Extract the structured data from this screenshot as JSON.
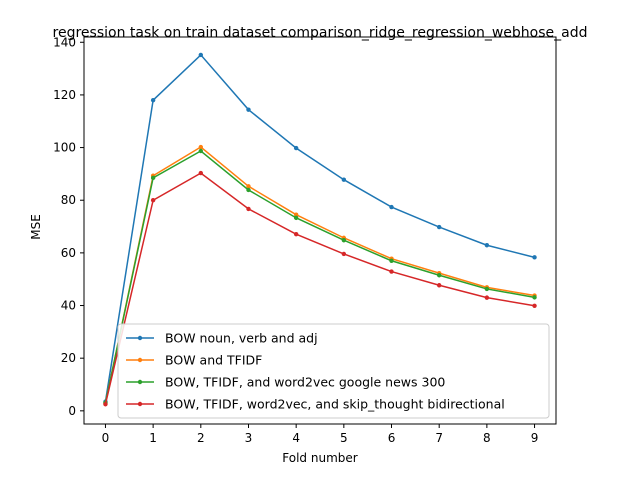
{
  "chart_data": {
    "type": "line",
    "title": "regression task on train dataset comparison_ridge_regression_webhose_add",
    "xlabel": "Fold number",
    "ylabel": "MSE",
    "x": [
      0,
      1,
      2,
      3,
      4,
      5,
      6,
      7,
      8,
      9
    ],
    "xlim": [
      -0.45,
      9.45
    ],
    "ylim": [
      -5,
      142
    ],
    "xticks": [
      "0",
      "1",
      "2",
      "3",
      "4",
      "5",
      "6",
      "7",
      "8",
      "9"
    ],
    "yticks": [
      "0",
      "20",
      "40",
      "60",
      "80",
      "100",
      "120",
      "140"
    ],
    "grid": false,
    "legend_position": "lower-center",
    "series": [
      {
        "name": "BOW noun, verb and adj",
        "color": "#1f77b4",
        "values": [
          3.5,
          118,
          135.2,
          114.4,
          99.8,
          87.8,
          77.4,
          69.8,
          62.9,
          58.3
        ]
      },
      {
        "name": "BOW and TFIDF",
        "color": "#ff7f0e",
        "values": [
          3.0,
          89.3,
          100.2,
          85.3,
          74.5,
          65.7,
          57.8,
          52.3,
          46.9,
          43.8
        ]
      },
      {
        "name": "BOW, TFIDF, and word2vec google news 300",
        "color": "#2ca02c",
        "values": [
          3.0,
          88.5,
          98.7,
          83.9,
          73.3,
          64.8,
          57.0,
          51.5,
          46.3,
          43.1
        ]
      },
      {
        "name": "BOW, TFIDF, word2vec, and skip_thought bidirectional",
        "color": "#d62728",
        "values": [
          2.5,
          80.0,
          90.3,
          76.7,
          67.1,
          59.6,
          52.9,
          47.7,
          43.0,
          39.9
        ]
      }
    ]
  }
}
